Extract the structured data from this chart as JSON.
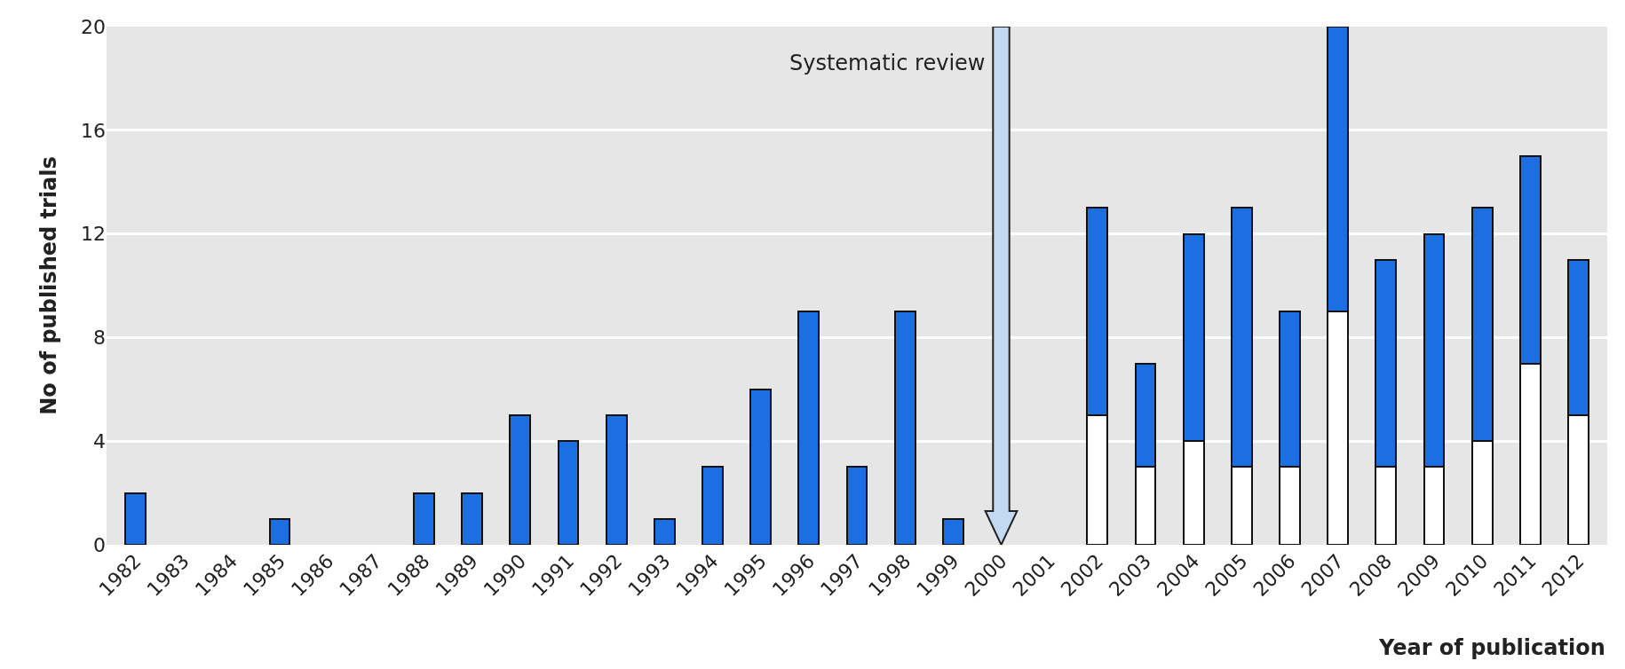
{
  "chart_data": {
    "type": "bar",
    "xlabel": "Year of publication",
    "ylabel": "No of published trials",
    "categories": [
      "1982",
      "1983",
      "1984",
      "1985",
      "1986",
      "1987",
      "1988",
      "1989",
      "1990",
      "1991",
      "1992",
      "1993",
      "1994",
      "1995",
      "1996",
      "1997",
      "1998",
      "1999",
      "2000",
      "2001",
      "2002",
      "2003",
      "2004",
      "2005",
      "2006",
      "2007",
      "2008",
      "2009",
      "2010",
      "2011",
      "2012"
    ],
    "stacked": true,
    "series": [
      {
        "color": "#ffffff",
        "values": [
          null,
          null,
          null,
          null,
          null,
          null,
          null,
          null,
          null,
          null,
          null,
          null,
          null,
          null,
          null,
          null,
          null,
          null,
          null,
          null,
          5,
          3,
          4,
          3,
          3,
          9,
          3,
          3,
          4,
          7,
          5
        ]
      },
      {
        "color": "#1c6fe3",
        "values": [
          2,
          0,
          0,
          1,
          0,
          0,
          2,
          2,
          5,
          4,
          5,
          1,
          3,
          6,
          9,
          3,
          9,
          1,
          0,
          0,
          8,
          4,
          8,
          10,
          6,
          11,
          8,
          9,
          9,
          8,
          6
        ]
      }
    ],
    "ylim": [
      0,
      20
    ],
    "yticks": [
      0,
      4,
      8,
      12,
      16,
      20
    ],
    "grid": "y",
    "ref_lines": [
      {
        "axis": "x",
        "value": "2000",
        "label": "Systematic review",
        "color": "#c3d9f3"
      }
    ]
  }
}
